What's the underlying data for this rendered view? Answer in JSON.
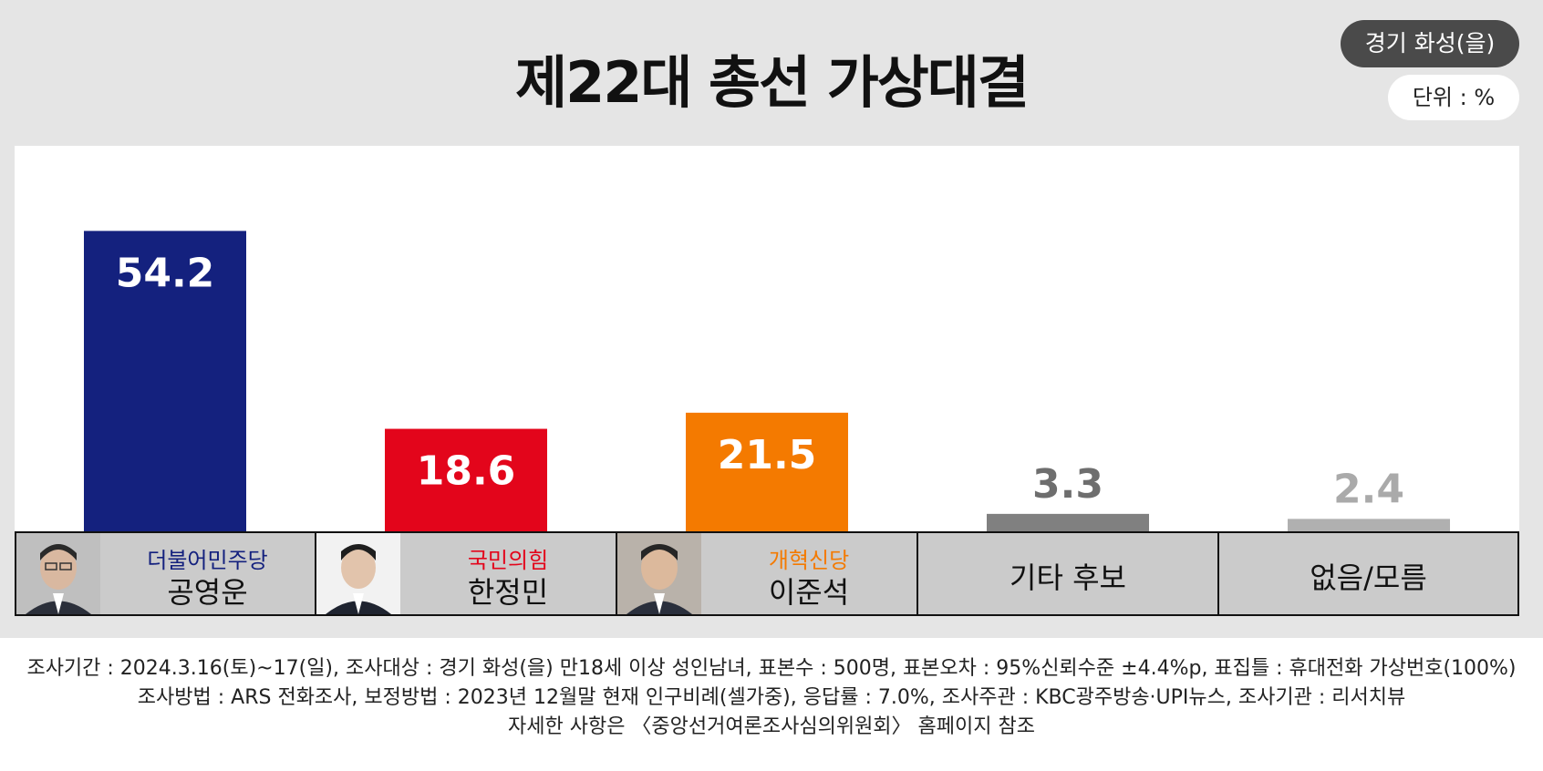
{
  "header": {
    "title": "제22대 총선 가상대결",
    "region_badge": "경기 화성(을)",
    "unit_badge": "단위 : %"
  },
  "colors": {
    "democratic": "#14217e",
    "ppp": "#e3051b",
    "reform": "#f47a00",
    "other": "#808080",
    "none": "#b0b0b0",
    "background": "#e5e5e5"
  },
  "candidates": [
    {
      "party": "더불어민주당",
      "name": "공영운",
      "party_color": "#14217e"
    },
    {
      "party": "국민의힘",
      "name": "한정민",
      "party_color": "#e3051b"
    },
    {
      "party": "개혁신당",
      "name": "이준석",
      "party_color": "#f47a00"
    },
    {
      "party": "",
      "name": "기타 후보",
      "party_color": ""
    },
    {
      "party": "",
      "name": "없음/모름",
      "party_color": ""
    }
  ],
  "chart_data": {
    "type": "bar",
    "title": "제22대 총선 가상대결",
    "categories": [
      "공영운",
      "한정민",
      "이준석",
      "기타 후보",
      "없음/모름"
    ],
    "values": [
      54.2,
      18.6,
      21.5,
      3.3,
      2.4
    ],
    "bar_colors": [
      "#14217e",
      "#e3051b",
      "#f47a00",
      "#808080",
      "#b0b0b0"
    ],
    "label_colors": [
      "#ffffff",
      "#ffffff",
      "#ffffff",
      "#6e6e6e",
      "#aaaaaa"
    ],
    "ylim": [
      0,
      60
    ],
    "xlabel": "",
    "ylabel": "",
    "grid": false
  },
  "footer": {
    "line1": "조사기간 : 2024.3.16(토)~17(일), 조사대상 : 경기 화성(을) 만18세 이상 성인남녀, 표본수 : 500명, 표본오차 : 95%신뢰수준 ±4.4%p, 표집틀 : 휴대전화 가상번호(100%)",
    "line2": "조사방법 : ARS 전화조사, 보정방법 : 2023년 12월말 현재 인구비례(셀가중), 응답률 : 7.0%, 조사주관 : KBC광주방송·UPI뉴스, 조사기관 : 리서치뷰",
    "line3": "자세한 사항은 〈중앙선거여론조사심의위원회〉 홈페이지 참조"
  }
}
